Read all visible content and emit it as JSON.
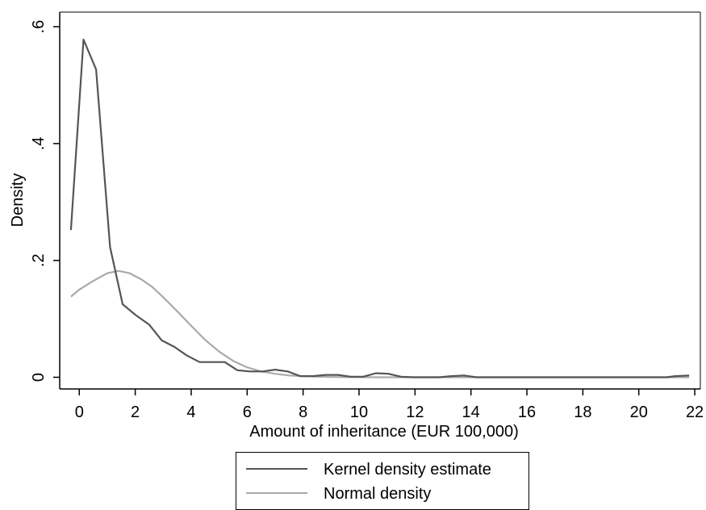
{
  "chart_data": {
    "type": "line",
    "xlabel": "Amount of inheritance (EUR 100,000)",
    "ylabel": "Density",
    "xlim": [
      -0.7,
      22.2
    ],
    "ylim": [
      -0.02,
      0.625
    ],
    "xticks": [
      0,
      2,
      4,
      6,
      8,
      10,
      12,
      14,
      16,
      18,
      20,
      22
    ],
    "xtick_labels": [
      "0",
      "2",
      "4",
      "6",
      "8",
      "10",
      "12",
      "14",
      "16",
      "18",
      "20",
      "22"
    ],
    "yticks": [
      0,
      0.2,
      0.4,
      0.6
    ],
    "ytick_labels": [
      "0",
      ".2",
      ".4",
      ".6"
    ],
    "grid": false,
    "legend_position": "bottom",
    "series": [
      {
        "name": "Kernel density estimate",
        "color": "#555555",
        "x": [
          -0.3,
          0.15,
          0.6,
          1.1,
          1.55,
          2.0,
          2.5,
          2.95,
          3.4,
          3.85,
          4.3,
          4.75,
          5.2,
          5.65,
          6.1,
          6.55,
          7.0,
          7.45,
          7.9,
          8.35,
          8.8,
          9.25,
          9.7,
          10.15,
          10.6,
          11.05,
          11.5,
          11.95,
          12.4,
          12.85,
          13.3,
          13.75,
          14.2,
          15.0,
          16.0,
          17.0,
          18.0,
          19.0,
          20.0,
          21.0,
          21.3,
          21.8
        ],
        "y": [
          0.252,
          0.578,
          0.527,
          0.223,
          0.125,
          0.107,
          0.09,
          0.063,
          0.052,
          0.037,
          0.026,
          0.026,
          0.026,
          0.012,
          0.01,
          0.01,
          0.013,
          0.01,
          0.002,
          0.002,
          0.004,
          0.004,
          0.001,
          0.001,
          0.007,
          0.006,
          0.001,
          0.0,
          0.0,
          0.0,
          0.002,
          0.003,
          0.0,
          0.0,
          0.0,
          0.0,
          0.0,
          0.0,
          0.0,
          0.0,
          0.002,
          0.003
        ]
      },
      {
        "name": "Normal density",
        "color": "#aaaaaa",
        "x": [
          -0.3,
          0.0,
          0.5,
          1.0,
          1.4,
          1.8,
          2.2,
          2.6,
          3.0,
          3.5,
          4.0,
          4.5,
          5.0,
          5.5,
          6.0,
          6.5,
          7.0,
          7.5,
          8.0,
          8.5,
          9.0,
          10.0,
          12.0,
          14.0,
          16.0,
          18.0,
          20.0,
          21.8
        ],
        "y": [
          0.138,
          0.15,
          0.165,
          0.178,
          0.182,
          0.178,
          0.168,
          0.155,
          0.137,
          0.113,
          0.088,
          0.064,
          0.044,
          0.028,
          0.017,
          0.01,
          0.006,
          0.003,
          0.002,
          0.001,
          0.0005,
          0.0,
          0.0,
          0.0,
          0.0,
          0.0,
          0.0,
          0.0
        ]
      }
    ]
  }
}
